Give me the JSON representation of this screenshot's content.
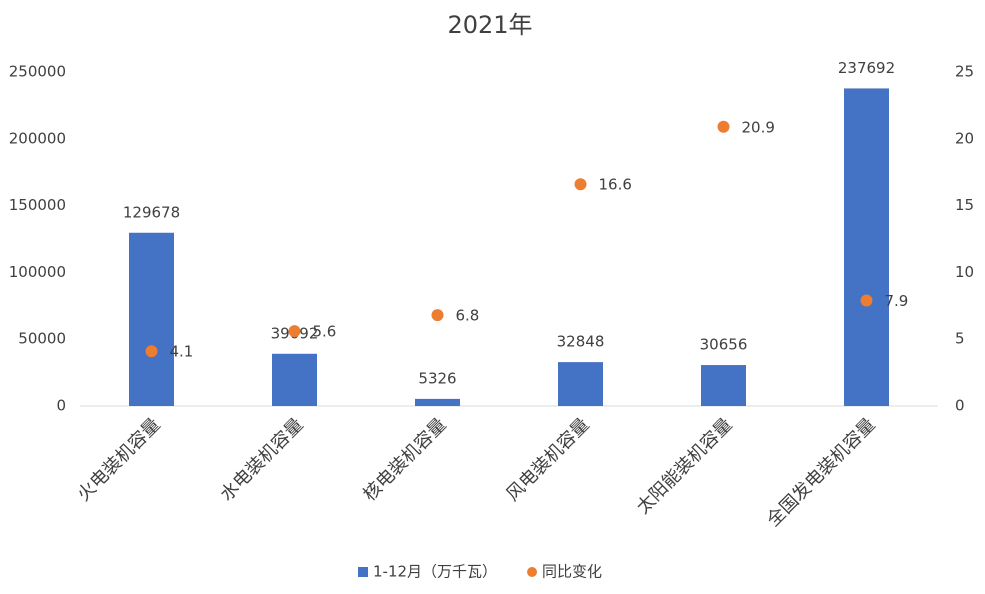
{
  "chart_data": {
    "type": "bar",
    "title": "2021年",
    "categories": [
      "火电装机容量",
      "水电装机容量",
      "核电装机容量",
      "风电装机容量",
      "太阳能装机容量",
      "全国发电装机容量"
    ],
    "series": [
      {
        "name": "1-12月（万千瓦）",
        "type": "bar",
        "color": "#4472c4",
        "values": [
          129678,
          39092,
          5326,
          32848,
          30656,
          237692
        ]
      },
      {
        "name": "同比变化",
        "type": "scatter",
        "axis": "y2",
        "color": "#ed7d31",
        "values": [
          4.1,
          5.6,
          6.8,
          16.6,
          20.9,
          7.9
        ]
      }
    ],
    "ylim": [
      0,
      250000
    ],
    "yticks": [
      0,
      50000,
      100000,
      150000,
      200000,
      250000
    ],
    "y2lim": [
      0,
      25
    ],
    "y2ticks": [
      0,
      5,
      10,
      15,
      20,
      25
    ],
    "legend": "bottom"
  }
}
